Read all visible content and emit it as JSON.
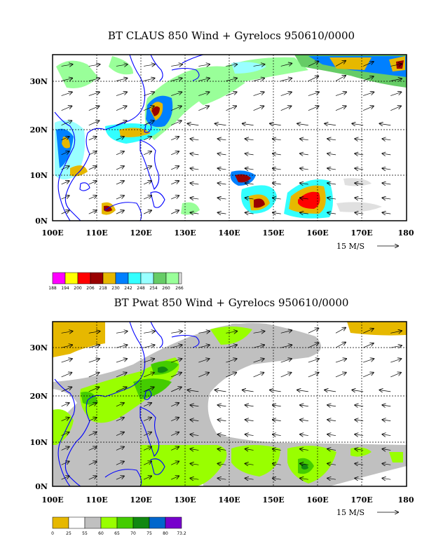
{
  "panels": [
    {
      "title": "BT CLAUS 850 Wind + Gyrelocs 950610/0000",
      "x_ticks": [
        "100E",
        "110E",
        "120E",
        "130E",
        "140E",
        "150E",
        "160E",
        "170E",
        "180"
      ],
      "y_ticks": [
        "0N",
        "10N",
        "20N",
        "30N"
      ],
      "ref_vector": "15 M/S",
      "legend_labels": [
        "188",
        "194",
        "200",
        "206",
        "218",
        "230",
        "242",
        "248",
        "254",
        "260",
        "266"
      ],
      "legend_colors": [
        "#ff00ff",
        "#ffff00",
        "#ff0000",
        "#990000",
        "#e6b800",
        "#0080ff",
        "#33ffff",
        "#99ffff",
        "#66cc66",
        "#99ff99",
        "#e0e0e0"
      ],
      "wind_shading": "BT CLAUS brightness temperature"
    },
    {
      "title": "BT Pwat 850 Wind + Gyrelocs 950610/0000",
      "x_ticks": [
        "100E",
        "110E",
        "120E",
        "130E",
        "140E",
        "150E",
        "160E",
        "170E",
        "180"
      ],
      "y_ticks": [
        "0N",
        "10N",
        "20N",
        "30N"
      ],
      "ref_vector": "15 M/S",
      "legend_labels": [
        "0",
        "25",
        "55",
        "60",
        "65",
        "70",
        "75",
        "80",
        "73.2"
      ],
      "legend_colors": [
        "#e6b800",
        "#ffffff",
        "#c0c0c0",
        "#99ff00",
        "#44cc00",
        "#118811",
        "#0066cc",
        "#7700cc"
      ],
      "wind_shading": "BT precipitable water"
    }
  ],
  "map": {
    "lon_range": [
      100,
      180
    ],
    "lat_range": [
      0,
      36
    ],
    "coast_color": "#0000ff"
  }
}
